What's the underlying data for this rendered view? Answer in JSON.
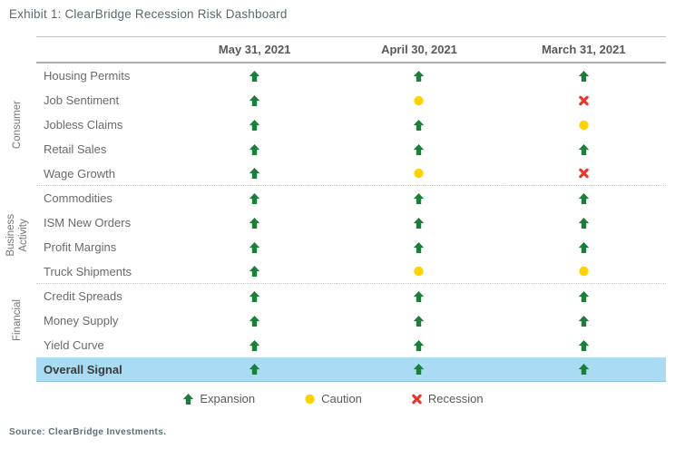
{
  "title": "Exhibit 1: ClearBridge Recession Risk Dashboard",
  "source_note": "Source: ClearBridge Investments.",
  "colors": {
    "expansion_green": "#1b7e3b",
    "caution_yellow": "#ffd200",
    "recession_red": "#e5392c",
    "overall_highlight_blue": "#a9dbf2"
  },
  "icons": {
    "expansion": {
      "name": "up-arrow-icon",
      "color": "#1b7e3b"
    },
    "caution": {
      "name": "circle-icon",
      "color": "#ffd200"
    },
    "recession": {
      "name": "x-icon",
      "color": "#e5392c"
    }
  },
  "chart_data": {
    "type": "table",
    "title": "Exhibit 1: ClearBridge Recession Risk Dashboard",
    "columns": [
      "May 31, 2021",
      "April 30, 2021",
      "March 31, 2021"
    ],
    "row_groups": [
      {
        "group": "Consumer",
        "rows": [
          {
            "label": "Housing Permits",
            "values": [
              "expansion",
              "expansion",
              "expansion"
            ]
          },
          {
            "label": "Job Sentiment",
            "values": [
              "expansion",
              "caution",
              "recession"
            ]
          },
          {
            "label": "Jobless Claims",
            "values": [
              "expansion",
              "expansion",
              "caution"
            ]
          },
          {
            "label": "Retail Sales",
            "values": [
              "expansion",
              "expansion",
              "expansion"
            ]
          },
          {
            "label": "Wage Growth",
            "values": [
              "expansion",
              "caution",
              "recession"
            ]
          }
        ]
      },
      {
        "group": "Business Activity",
        "rows": [
          {
            "label": "Commodities",
            "values": [
              "expansion",
              "expansion",
              "expansion"
            ]
          },
          {
            "label": "ISM New Orders",
            "values": [
              "expansion",
              "expansion",
              "expansion"
            ]
          },
          {
            "label": "Profit Margins",
            "values": [
              "expansion",
              "expansion",
              "expansion"
            ]
          },
          {
            "label": "Truck Shipments",
            "values": [
              "expansion",
              "caution",
              "caution"
            ]
          }
        ]
      },
      {
        "group": "Financial",
        "rows": [
          {
            "label": "Credit Spreads",
            "values": [
              "expansion",
              "expansion",
              "expansion"
            ]
          },
          {
            "label": "Money Supply",
            "values": [
              "expansion",
              "expansion",
              "expansion"
            ]
          },
          {
            "label": "Yield Curve",
            "values": [
              "expansion",
              "expansion",
              "expansion"
            ]
          }
        ]
      }
    ],
    "overall_row": {
      "label": "Overall Signal",
      "values": [
        "expansion",
        "expansion",
        "expansion"
      ]
    },
    "legend": [
      {
        "status": "expansion",
        "label": "Expansion"
      },
      {
        "status": "caution",
        "label": "Caution"
      },
      {
        "status": "recession",
        "label": "Recession"
      }
    ]
  }
}
